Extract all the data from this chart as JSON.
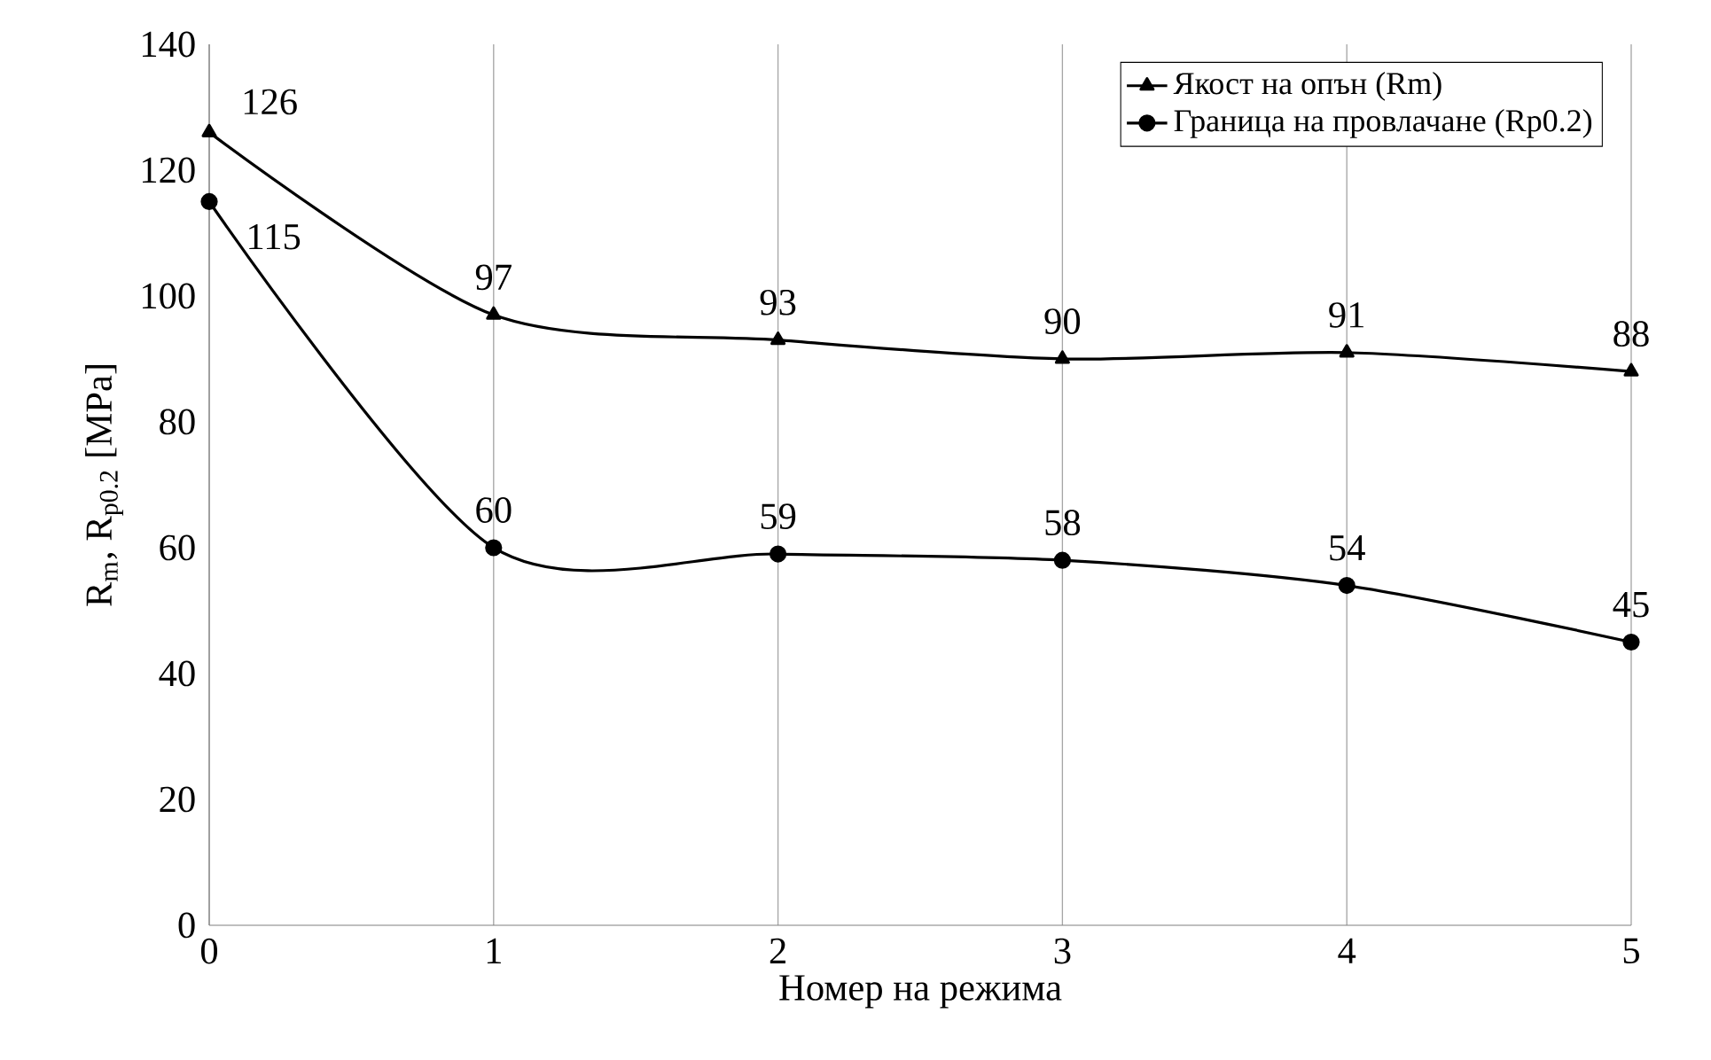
{
  "chart_data": {
    "type": "line",
    "xlabel": "Номер на режима",
    "ylabel": "R$_{m}$, R$_{p0.2}$ [MPa]",
    "x": [
      0,
      1,
      2,
      3,
      4,
      5
    ],
    "series": [
      {
        "name": "Якост на опън (Rm)",
        "color": "#000000",
        "marker": "triangle",
        "values": [
          126,
          97,
          93,
          90,
          91,
          88
        ]
      },
      {
        "name": "Граница на провлачане (Rp0.2)",
        "color": "#000000",
        "marker": "circle",
        "values": [
          115,
          60,
          59,
          58,
          54,
          45
        ]
      }
    ],
    "xlim": [
      0,
      5
    ],
    "xticks": [
      0,
      1,
      2,
      3,
      4,
      5
    ],
    "ylim": [
      0,
      140
    ],
    "yticks": [
      0,
      20,
      40,
      60,
      80,
      100,
      120,
      140
    ],
    "grid": "x",
    "legend": "top right",
    "data_labels": true,
    "line_style": "solid"
  }
}
